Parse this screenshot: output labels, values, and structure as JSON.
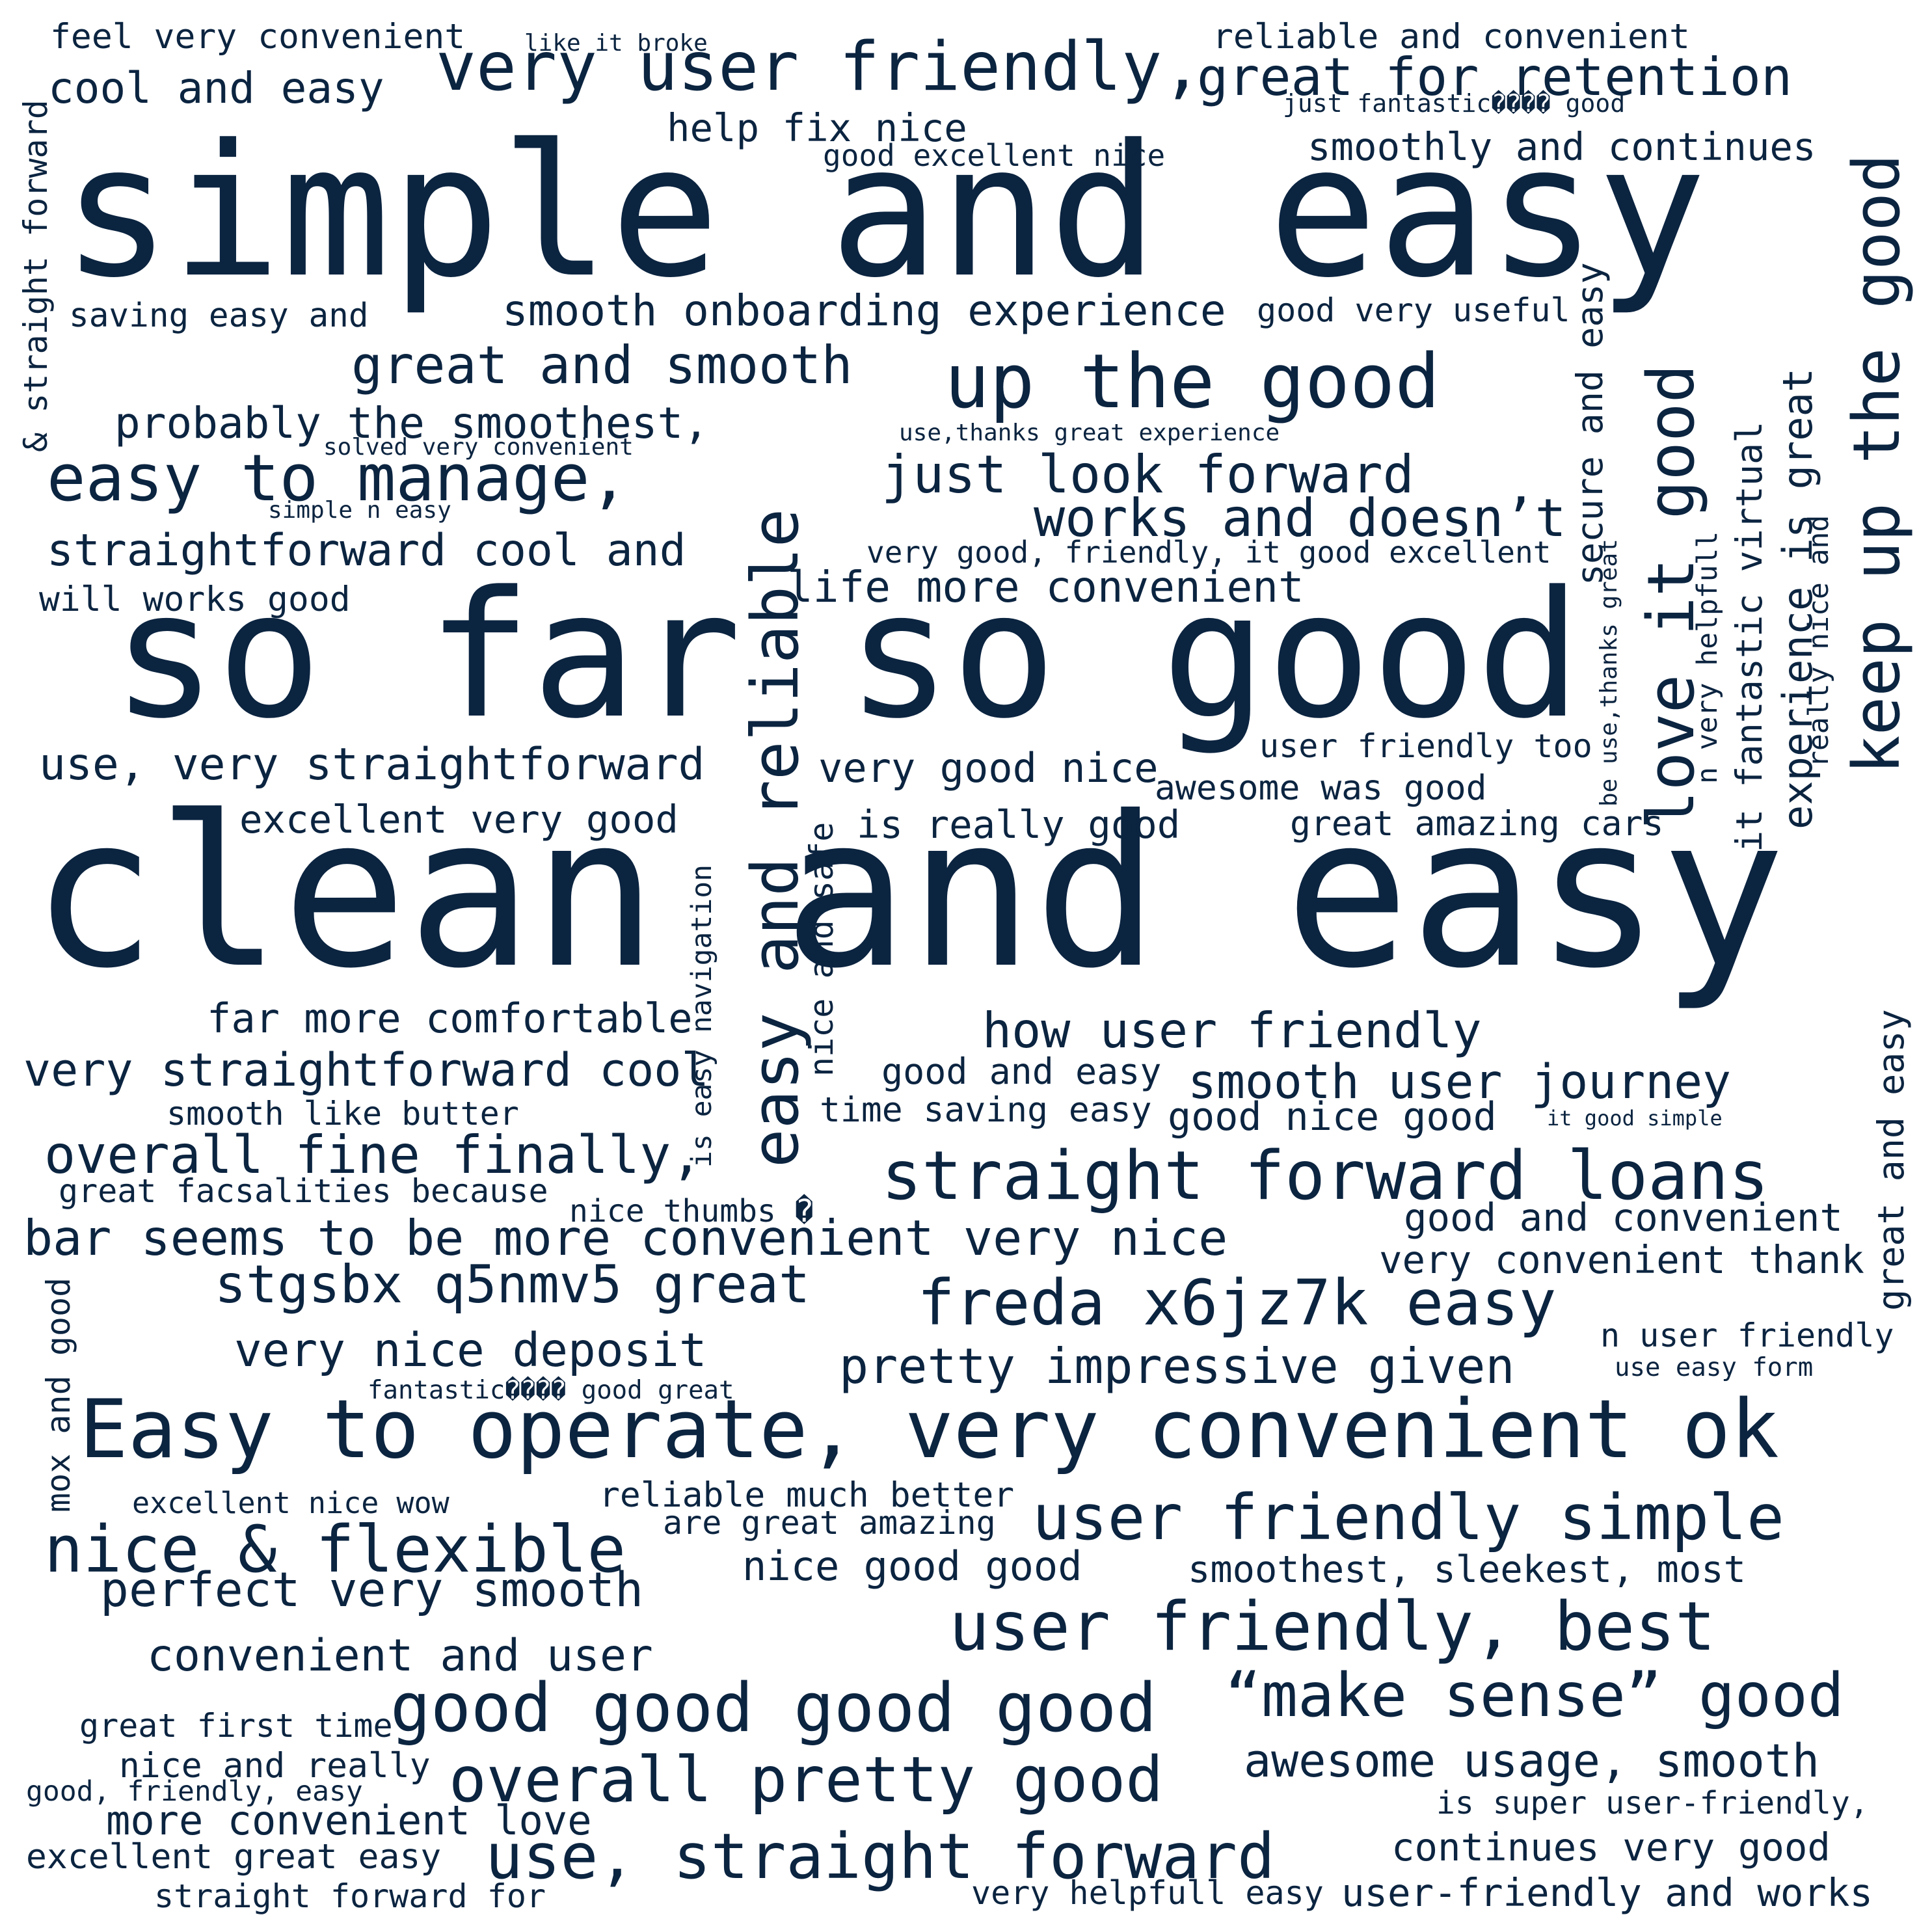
{
  "cloud": {
    "ink_color": "#0b2440",
    "background": "#ffffff",
    "phrases": [
      {
        "text": "simple and easy"
      },
      {
        "text": "so far so good"
      },
      {
        "text": "clean and easy"
      },
      {
        "text": "feel very convenient"
      },
      {
        "text": "like it broke"
      },
      {
        "text": "reliable and convenient"
      },
      {
        "text": "cool and easy"
      },
      {
        "text": "very user friendly,"
      },
      {
        "text": "great for retention"
      },
      {
        "text": "just fantastic���� good"
      },
      {
        "text": "help fix nice"
      },
      {
        "text": "good excellent nice"
      },
      {
        "text": "smoothly and continues"
      },
      {
        "text": "saving easy and"
      },
      {
        "text": "smooth onboarding experience"
      },
      {
        "text": "good very useful"
      },
      {
        "text": "great and smooth"
      },
      {
        "text": "up the good"
      },
      {
        "text": "probably the smoothest,"
      },
      {
        "text": "solved very convenient"
      },
      {
        "text": "use,thanks great experience"
      },
      {
        "text": "easy to manage,"
      },
      {
        "text": "just look forward"
      },
      {
        "text": "simple n easy"
      },
      {
        "text": "works and doesn’t"
      },
      {
        "text": "straightforward cool and"
      },
      {
        "text": "very good, friendly, it good excellent"
      },
      {
        "text": "life more convenient"
      },
      {
        "text": "will works good"
      },
      {
        "text": "use, very straightforward"
      },
      {
        "text": "very good nice"
      },
      {
        "text": "user friendly too"
      },
      {
        "text": "awesome was good"
      },
      {
        "text": "excellent very good"
      },
      {
        "text": "is really good"
      },
      {
        "text": "great amazing cars"
      },
      {
        "text": "far more comfortable"
      },
      {
        "text": "how user friendly"
      },
      {
        "text": "very straightforward cool"
      },
      {
        "text": "good and easy"
      },
      {
        "text": "smooth user journey"
      },
      {
        "text": "smooth like butter"
      },
      {
        "text": "time saving easy"
      },
      {
        "text": "good nice good"
      },
      {
        "text": "it good simple"
      },
      {
        "text": "overall fine finally,"
      },
      {
        "text": "straight forward loans"
      },
      {
        "text": "great facsalities because"
      },
      {
        "text": "nice thumbs �"
      },
      {
        "text": "good and convenient"
      },
      {
        "text": "bar seems to be more convenient very nice"
      },
      {
        "text": "very convenient thank"
      },
      {
        "text": "stgsbx q5nmv5 great"
      },
      {
        "text": "freda x6jz7k easy"
      },
      {
        "text": "n user friendly"
      },
      {
        "text": "very nice deposit"
      },
      {
        "text": "pretty impressive given"
      },
      {
        "text": "use easy form"
      },
      {
        "text": "fantastic���� good great"
      },
      {
        "text": "Easy to operate, very convenient ok"
      },
      {
        "text": "excellent nice wow"
      },
      {
        "text": "reliable much better"
      },
      {
        "text": "are great amazing"
      },
      {
        "text": "user friendly simple"
      },
      {
        "text": "nice & flexible"
      },
      {
        "text": "nice good good"
      },
      {
        "text": "smoothest, sleekest, most"
      },
      {
        "text": "perfect very smooth"
      },
      {
        "text": "user friendly, best"
      },
      {
        "text": "convenient and user"
      },
      {
        "text": "good good good good"
      },
      {
        "text": "“make sense” good"
      },
      {
        "text": "great first time"
      },
      {
        "text": "nice and really"
      },
      {
        "text": "overall pretty good"
      },
      {
        "text": "awesome usage, smooth"
      },
      {
        "text": "good, friendly, easy"
      },
      {
        "text": "is super user-friendly,"
      },
      {
        "text": "more convenient love"
      },
      {
        "text": "excellent great easy"
      },
      {
        "text": "use, straight forward"
      },
      {
        "text": "continues very good"
      },
      {
        "text": "straight forward for"
      },
      {
        "text": "very helpfull easy"
      },
      {
        "text": "user-friendly and works"
      },
      {
        "text": "& straight forward"
      },
      {
        "text": "easy and reliable"
      },
      {
        "text": "nice and safe"
      },
      {
        "text": "is easy navigation"
      },
      {
        "text": "love it good"
      },
      {
        "text": "secure and easy"
      },
      {
        "text": "be use,thanks great"
      },
      {
        "text": "n very helpfull"
      },
      {
        "text": "it fantastic virtual"
      },
      {
        "text": "experience is great"
      },
      {
        "text": "really nice and"
      },
      {
        "text": "keep up the good"
      },
      {
        "text": "great and easy"
      },
      {
        "text": "mox and good"
      }
    ]
  }
}
